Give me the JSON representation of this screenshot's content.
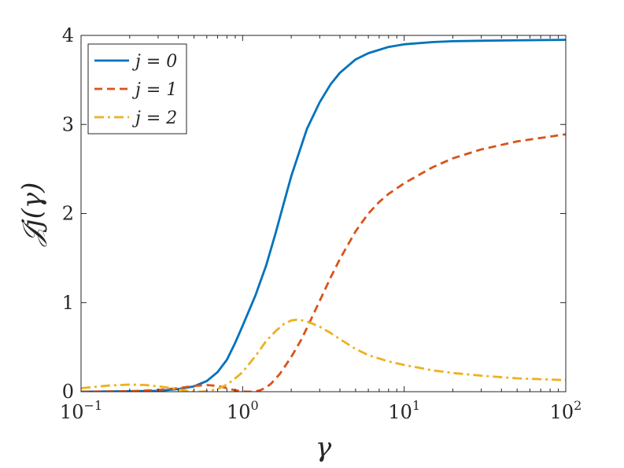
{
  "chart_data": {
    "type": "line",
    "xlabel": "γ",
    "ylabel": "𝒥j(γ)",
    "xscale": "log",
    "xlim": [
      0.1,
      100
    ],
    "ylim": [
      0,
      4
    ],
    "grid": false,
    "legend_position": "top-left",
    "x_ticks": [
      {
        "value": 0.1,
        "base": "10",
        "exp": "−1"
      },
      {
        "value": 1,
        "base": "10",
        "exp": "0"
      },
      {
        "value": 10,
        "base": "10",
        "exp": "1"
      },
      {
        "value": 100,
        "base": "10",
        "exp": "2"
      }
    ],
    "y_ticks": [
      {
        "value": 0,
        "label": "0"
      },
      {
        "value": 1,
        "label": "1"
      },
      {
        "value": 2,
        "label": "2"
      },
      {
        "value": 3,
        "label": "3"
      },
      {
        "value": 4,
        "label": "4"
      }
    ],
    "series": [
      {
        "name": "j = 0",
        "color": "#0072BD",
        "dash": "solid",
        "x": [
          0.1,
          0.2,
          0.3,
          0.4,
          0.5,
          0.6,
          0.7,
          0.8,
          0.9,
          1.0,
          1.2,
          1.4,
          1.6,
          1.8,
          2.0,
          2.5,
          3.0,
          3.5,
          4.0,
          5.0,
          6.0,
          8.0,
          10,
          15,
          20,
          30,
          50,
          100
        ],
        "y": [
          0.0,
          0.005,
          0.01,
          0.03,
          0.06,
          0.12,
          0.22,
          0.36,
          0.55,
          0.74,
          1.08,
          1.42,
          1.78,
          2.12,
          2.42,
          2.95,
          3.25,
          3.45,
          3.58,
          3.73,
          3.8,
          3.87,
          3.9,
          3.925,
          3.935,
          3.94,
          3.945,
          3.95
        ]
      },
      {
        "name": "j = 1",
        "color": "#D95319",
        "dash": "dashed",
        "x": [
          0.1,
          0.2,
          0.3,
          0.4,
          0.5,
          0.6,
          0.7,
          0.8,
          0.9,
          1.0,
          1.1,
          1.2,
          1.3,
          1.4,
          1.5,
          1.7,
          2.0,
          2.3,
          2.6,
          3.0,
          3.5,
          4.0,
          5.0,
          6.0,
          7.0,
          8.0,
          10,
          15,
          20,
          30,
          50,
          100
        ],
        "y": [
          0.0,
          0.005,
          0.02,
          0.04,
          0.065,
          0.075,
          0.065,
          0.04,
          0.015,
          0.002,
          0.0,
          0.003,
          0.02,
          0.05,
          0.09,
          0.2,
          0.39,
          0.58,
          0.78,
          1.02,
          1.28,
          1.49,
          1.8,
          2.0,
          2.13,
          2.22,
          2.34,
          2.52,
          2.62,
          2.72,
          2.81,
          2.89
        ]
      },
      {
        "name": "j = 2",
        "color": "#EDB120",
        "dash": "dashdot",
        "x": [
          0.1,
          0.15,
          0.2,
          0.25,
          0.3,
          0.35,
          0.4,
          0.45,
          0.5,
          0.55,
          0.6,
          0.7,
          0.8,
          0.9,
          1.0,
          1.2,
          1.4,
          1.6,
          1.8,
          2.0,
          2.2,
          2.5,
          3.0,
          3.5,
          4.0,
          5.0,
          6.0,
          8.0,
          10,
          15,
          20,
          30,
          50,
          100
        ],
        "y": [
          0.04,
          0.07,
          0.08,
          0.075,
          0.06,
          0.045,
          0.025,
          0.01,
          0.002,
          0.0,
          0.005,
          0.03,
          0.08,
          0.15,
          0.22,
          0.4,
          0.57,
          0.68,
          0.76,
          0.8,
          0.81,
          0.79,
          0.73,
          0.66,
          0.59,
          0.48,
          0.41,
          0.34,
          0.3,
          0.24,
          0.21,
          0.18,
          0.15,
          0.13
        ]
      }
    ]
  }
}
